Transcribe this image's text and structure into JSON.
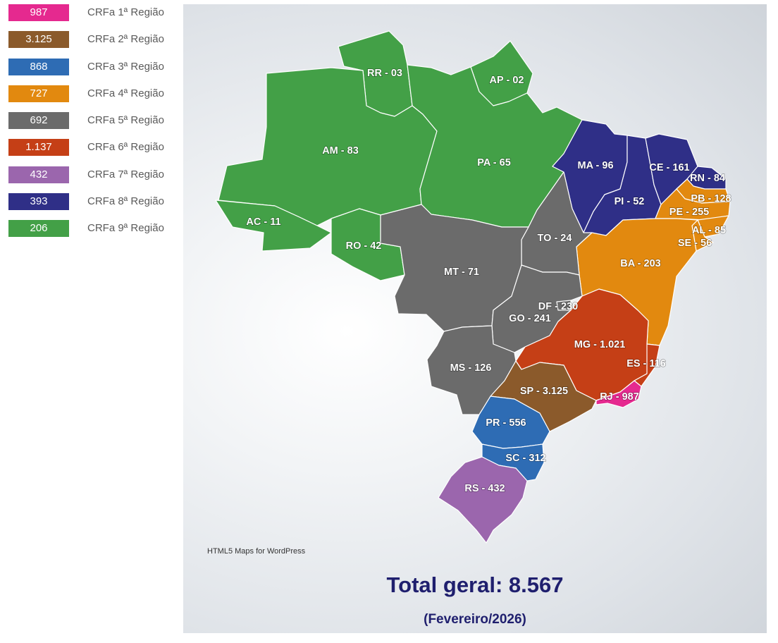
{
  "colors": {
    "r1": "#e5298f",
    "r2": "#8b5a2b",
    "r3": "#2e6cb4",
    "r4": "#e2890f",
    "r5": "#6b6b6b",
    "r6": "#c53f16",
    "r7": "#9b66ad",
    "r8": "#2f2f87",
    "r9": "#43a047"
  },
  "legend": [
    {
      "value": "987",
      "label": "CRFa 1ª Região",
      "color": "#e5298f"
    },
    {
      "value": "3.125",
      "label": "CRFa 2ª Região",
      "color": "#8b5a2b"
    },
    {
      "value": "868",
      "label": "CRFa 3ª Região",
      "color": "#2e6cb4"
    },
    {
      "value": "727",
      "label": "CRFa 4ª Região",
      "color": "#e2890f"
    },
    {
      "value": "692",
      "label": "CRFa 5ª Região",
      "color": "#6b6b6b"
    },
    {
      "value": "1.137",
      "label": "CRFa 6ª Região",
      "color": "#c53f16"
    },
    {
      "value": "432",
      "label": "CRFa 7ª Região",
      "color": "#9b66ad"
    },
    {
      "value": "393",
      "label": "CRFa 8ª Região",
      "color": "#2f2f87"
    },
    {
      "value": "206",
      "label": "CRFa 9ª Região",
      "color": "#43a047"
    }
  ],
  "states": {
    "rr": "RR - 03",
    "ap": "AP - 02",
    "am": "AM - 83",
    "pa": "PA - 65",
    "ac": "AC - 11",
    "ro": "RO - 42",
    "ma": "MA - 96",
    "ce": "CE - 161",
    "rn": "RN - 84",
    "pb": "PB - 128",
    "pe": "PE - 255",
    "al": "AL - 85",
    "se": "SE - 56",
    "pi": "PI - 52",
    "to": "TO - 24",
    "mt": "MT - 71",
    "ba": "BA - 203",
    "df": "DF - 230",
    "go": "GO - 241",
    "mg": "MG - 1.021",
    "es": "ES - 116",
    "ms": "MS - 126",
    "sp": "SP - 3.125",
    "rj": "RJ - 987",
    "pr": "PR - 556",
    "sc": "SC - 312",
    "rs": "RS - 432"
  },
  "credit": "HTML5 Maps for WordPress",
  "total": "Total geral: 8.567",
  "period": "(Fevereiro/2026)"
}
